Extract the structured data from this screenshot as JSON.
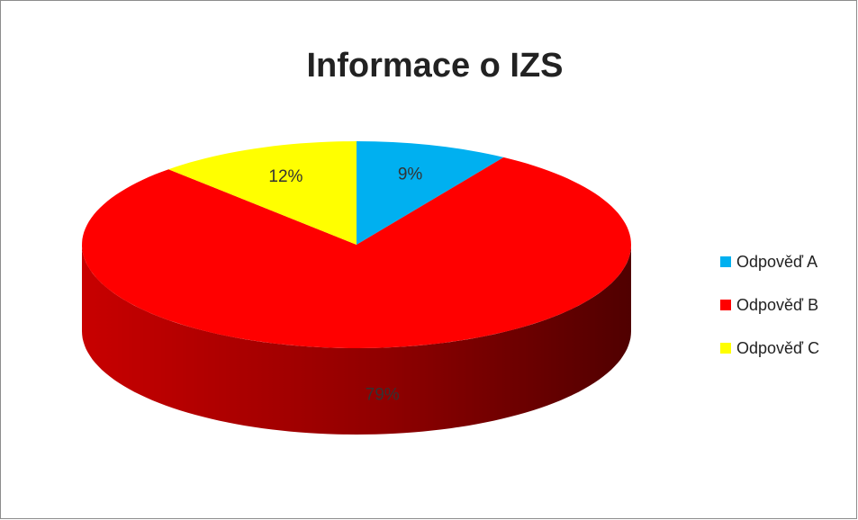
{
  "chart_data": {
    "type": "pie",
    "title": "Informace o IZS",
    "categories": [
      "Odpověď A",
      "Odpověď B",
      "Odpověď C"
    ],
    "values": [
      9,
      79,
      12
    ],
    "value_labels": [
      "9%",
      "79%",
      "12%"
    ],
    "colors": [
      "#00b0f0",
      "#ff0000",
      "#ffff00"
    ],
    "legend": "right"
  }
}
